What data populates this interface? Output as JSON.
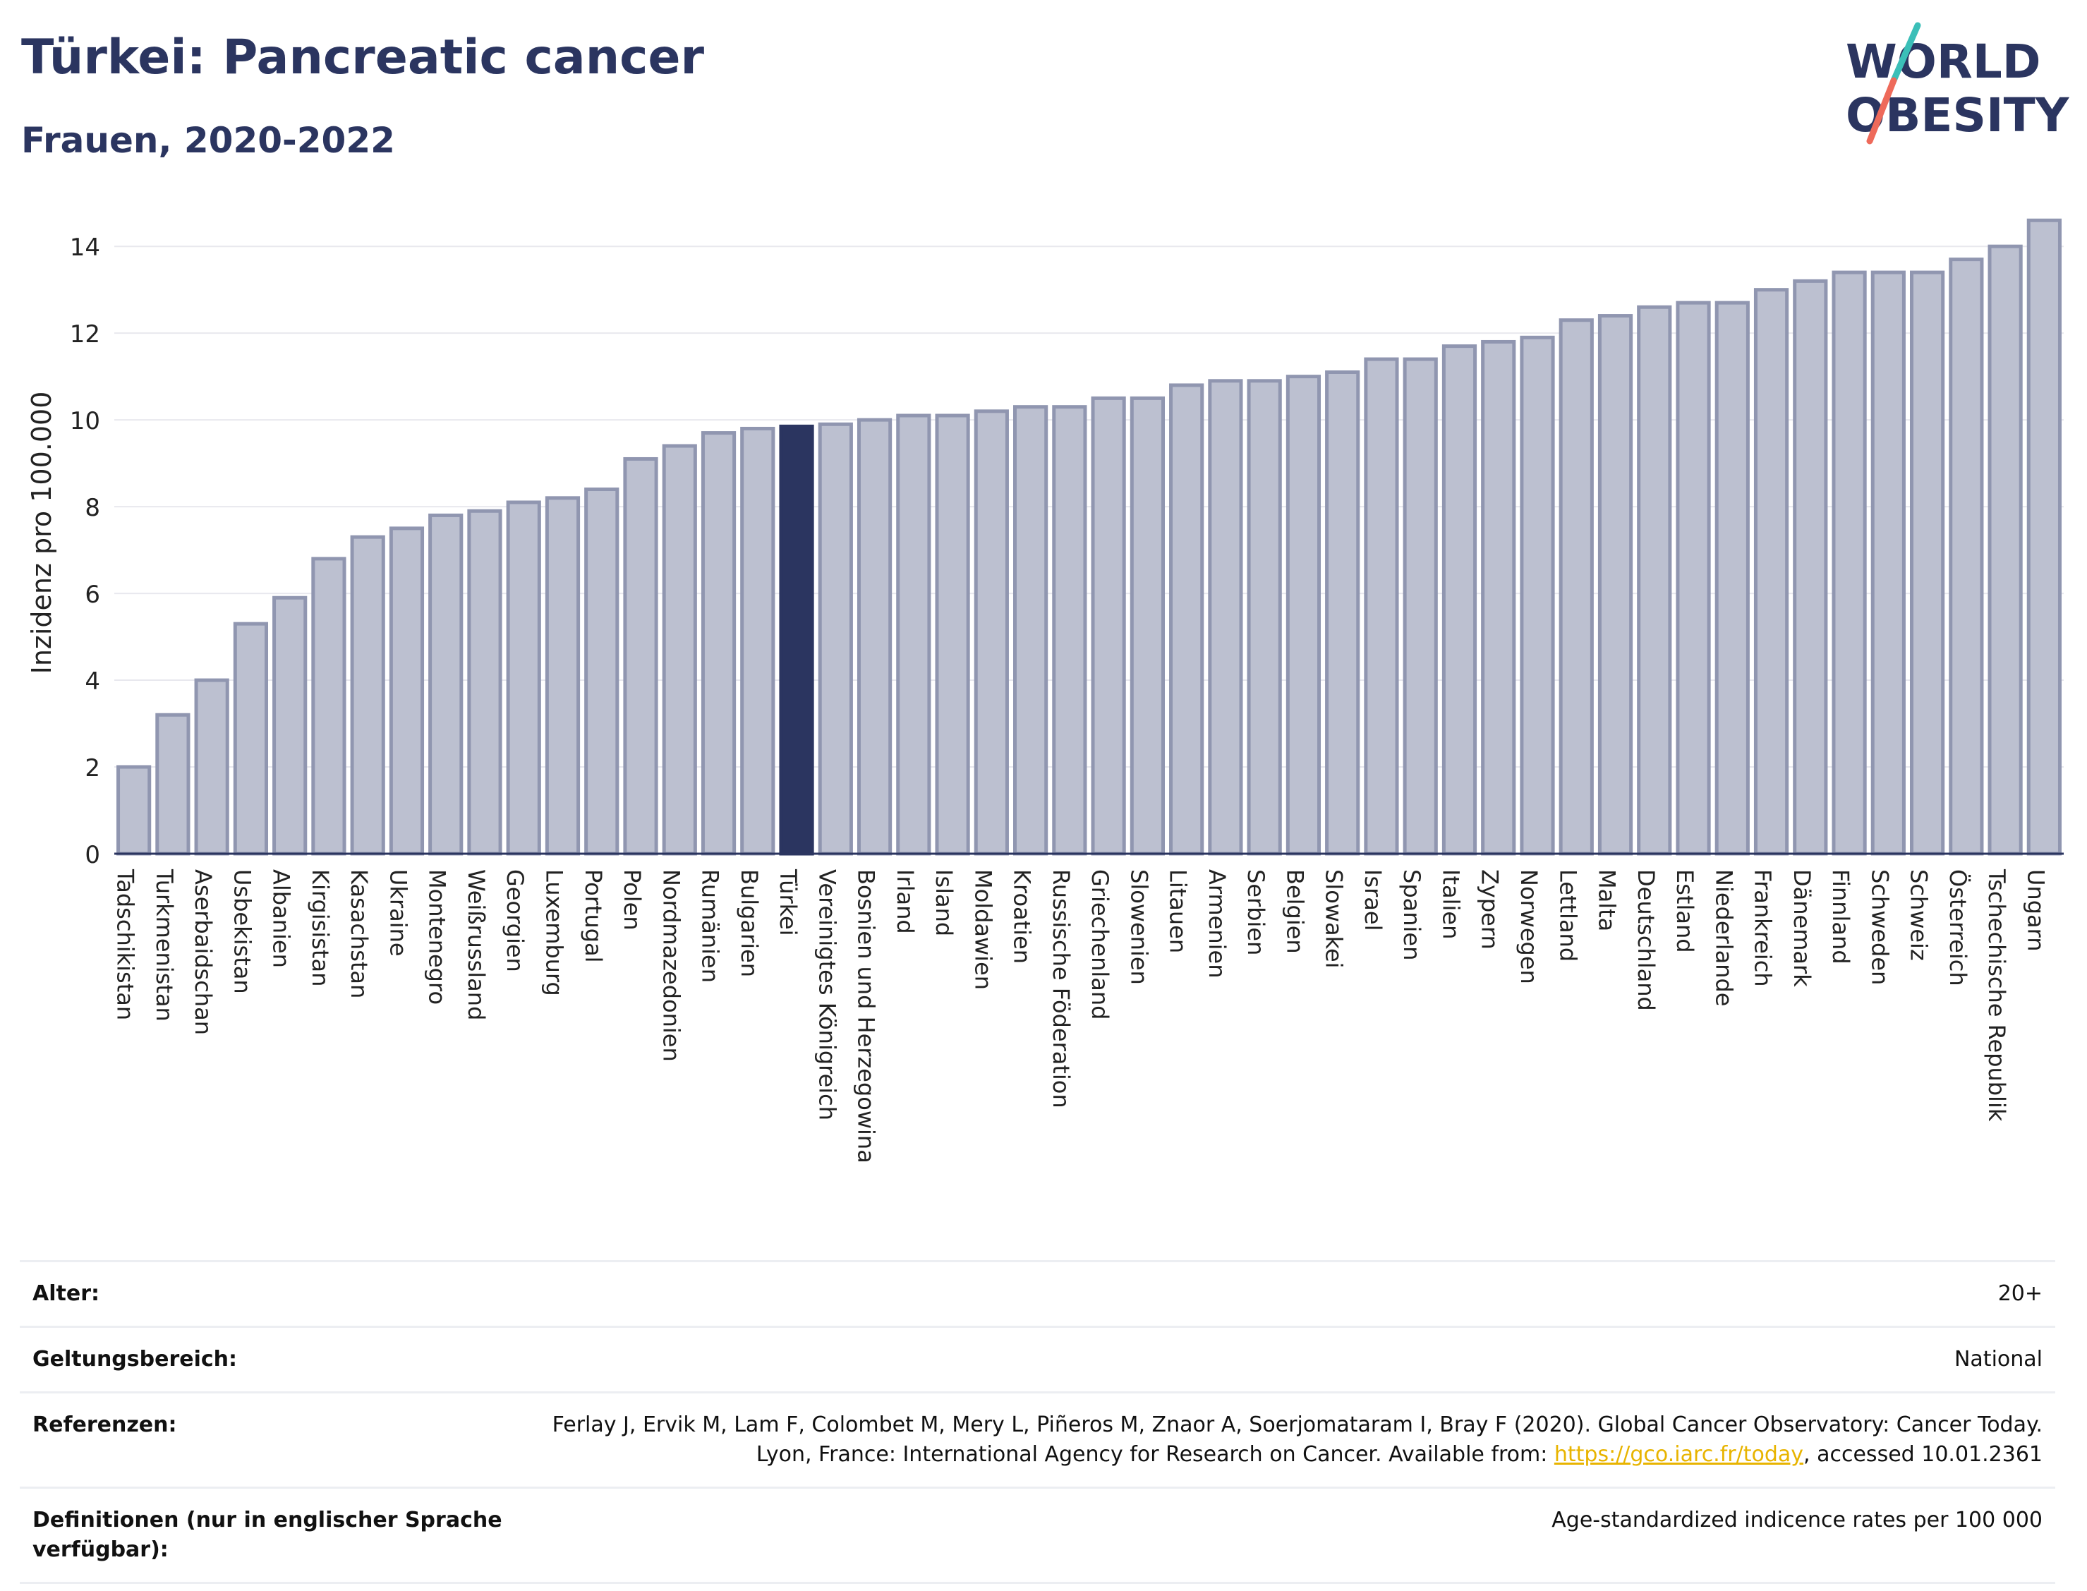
{
  "header": {
    "title": "Türkei: Pancreatic cancer",
    "subtitle": "Frauen, 2020-2022"
  },
  "logo": {
    "line1": "WORLD",
    "line2": "OBESITY"
  },
  "colors": {
    "highlight": "#2b3560",
    "bar_fill": "#bcc0d0",
    "bar_stroke": "#9096b0",
    "grid": "#e8e8ee",
    "logo_teal": "#3bbfb8",
    "logo_red": "#ee6a5a"
  },
  "chart_data": {
    "type": "bar",
    "ylabel": "Inzidenz pro 100.000",
    "ylim": [
      0,
      14.8
    ],
    "yticks": [
      0,
      2,
      4,
      6,
      8,
      10,
      12,
      14
    ],
    "grid": true,
    "highlight_category": "Türkei",
    "categories": [
      "Tadschikistan",
      "Turkmenistan",
      "Aserbaidschan",
      "Usbekistan",
      "Albanien",
      "Kirgisistan",
      "Kasachstan",
      "Ukraine",
      "Montenegro",
      "Weißrussland",
      "Georgien",
      "Luxemburg",
      "Portugal",
      "Polen",
      "Nordmazedonien",
      "Rumänien",
      "Bulgarien",
      "Türkei",
      "Vereinigtes Königreich",
      "Bosnien und Herzegowina",
      "Irland",
      "Island",
      "Moldawien",
      "Kroatien",
      "Russische Föderation",
      "Griechenland",
      "Slowenien",
      "Litauen",
      "Armenien",
      "Serbien",
      "Belgien",
      "Slowakei",
      "Israel",
      "Spanien",
      "Italien",
      "Zypern",
      "Norwegen",
      "Lettland",
      "Malta",
      "Deutschland",
      "Estland",
      "Niederlande",
      "Frankreich",
      "Dänemark",
      "Finnland",
      "Schweden",
      "Schweiz",
      "Österreich",
      "Tschechische Republik",
      "Ungarn"
    ],
    "values": [
      2.0,
      3.2,
      4.0,
      5.3,
      5.9,
      6.8,
      7.3,
      7.5,
      7.8,
      7.9,
      8.1,
      8.2,
      8.4,
      9.1,
      9.4,
      9.7,
      9.8,
      9.85,
      9.9,
      10.0,
      10.1,
      10.1,
      10.2,
      10.3,
      10.3,
      10.5,
      10.5,
      10.8,
      10.9,
      10.9,
      11.0,
      11.1,
      11.4,
      11.4,
      11.7,
      11.8,
      11.9,
      12.3,
      12.4,
      12.6,
      12.7,
      12.7,
      13.0,
      13.2,
      13.4,
      13.4,
      13.4,
      13.7,
      14.0,
      14.6
    ]
  },
  "footer": {
    "rows": [
      {
        "label": "Alter:",
        "value": "20+"
      },
      {
        "label": "Geltungsbereich:",
        "value": "National"
      },
      {
        "label": "Referenzen:",
        "value_part1": "Ferlay J, Ervik M, Lam F, Colombet M, Mery L, Piñeros M, Znaor A, Soerjomataram I, Bray F (2020). Global Cancer Observatory: Cancer Today. Lyon, France: International Agency for Research on Cancer. Available from: ",
        "link": "https://gco.iarc.fr/today",
        "value_part2": ", accessed 10.01.2361"
      },
      {
        "label": "Definitionen (nur in englischer Sprache verfügbar):",
        "value": "Age-standardized indicence rates per 100 000"
      }
    ]
  }
}
